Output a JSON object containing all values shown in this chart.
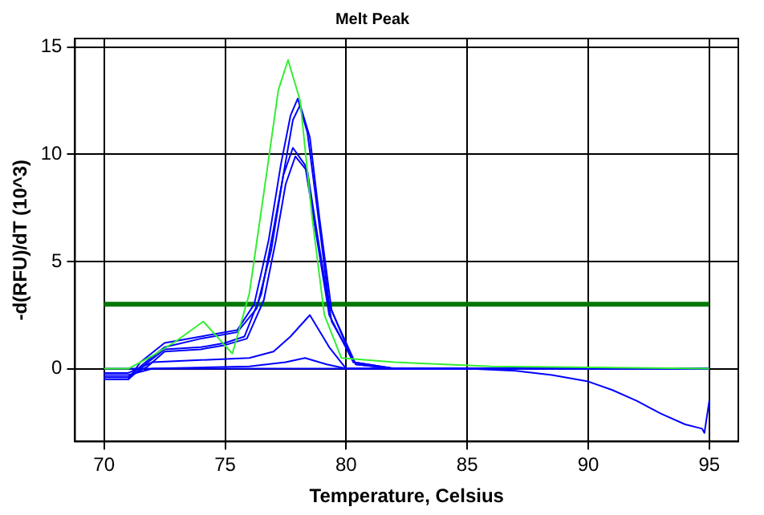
{
  "chart_data": {
    "type": "line",
    "title": "Melt Peak",
    "xlabel": "Temperature, Celsius",
    "ylabel": "-d(RFU)/dT (10^3)",
    "xlim": [
      68.8,
      96.2
    ],
    "ylim": [
      -3.4,
      15.4
    ],
    "xticks": [
      70,
      75,
      80,
      85,
      90,
      95
    ],
    "yticks": [
      0,
      5,
      10,
      15
    ],
    "grid": true,
    "legend": false,
    "marker": "none",
    "line_style": "solid",
    "ref_lines": [
      {
        "axis": "y",
        "value": 3,
        "color": "#007700"
      }
    ],
    "series": [
      {
        "color": "#33ee33",
        "x": [
          70,
          71,
          72,
          73,
          74.1,
          75.3,
          76,
          76.7,
          77.2,
          77.6,
          78.1,
          78.6,
          79.1,
          79.8,
          82,
          86,
          95
        ],
        "values": [
          0,
          0,
          0.6,
          1.3,
          2.2,
          0.7,
          3.5,
          9,
          13,
          14.4,
          12.5,
          7,
          2.5,
          0.5,
          0.3,
          0.1,
          0
        ]
      },
      {
        "color": "#0000ff",
        "x": [
          70,
          71,
          71.5,
          72.5,
          74,
          75.5,
          76.2,
          76.8,
          77.3,
          77.7,
          78,
          78.4,
          78.8,
          79.3,
          80.3,
          82,
          95
        ],
        "values": [
          -0.5,
          -0.5,
          0.3,
          1.2,
          1.5,
          1.8,
          3,
          6,
          9.5,
          11.8,
          12.6,
          11,
          7.5,
          3,
          0.3,
          0,
          0
        ]
      },
      {
        "color": "#0000ff",
        "x": [
          70,
          71,
          71.6,
          72.5,
          74,
          75.5,
          76.3,
          76.9,
          77.4,
          77.8,
          78.1,
          78.5,
          78.9,
          79.4,
          80.4,
          82,
          95
        ],
        "values": [
          -0.4,
          -0.4,
          0.2,
          1,
          1.4,
          1.7,
          2.8,
          5.5,
          9,
          11.6,
          12.3,
          10.8,
          7,
          2.7,
          0.2,
          0,
          0
        ]
      },
      {
        "color": "#0000ff",
        "x": [
          70,
          71,
          71.7,
          72.5,
          74,
          75,
          75.8,
          76.5,
          77,
          77.4,
          77.8,
          78.3,
          78.8,
          79.3,
          80.3,
          82,
          95
        ],
        "values": [
          -0.5,
          -0.5,
          0.2,
          0.9,
          1,
          1.2,
          1.5,
          3.5,
          6.5,
          9,
          10.3,
          9.5,
          6,
          2.5,
          0.3,
          0,
          0
        ]
      },
      {
        "color": "#0000ff",
        "x": [
          70,
          71,
          71.8,
          72.5,
          74,
          75,
          75.9,
          76.6,
          77.1,
          77.5,
          77.9,
          78.4,
          78.9,
          79.4,
          80.4,
          82,
          95
        ],
        "values": [
          -0.4,
          -0.4,
          0.1,
          0.8,
          0.9,
          1.1,
          1.4,
          3.2,
          6,
          8.6,
          9.9,
          9.2,
          5.6,
          2.2,
          0.2,
          0,
          0
        ]
      },
      {
        "color": "#0000ff",
        "x": [
          70,
          71,
          72,
          74,
          76,
          77,
          77.7,
          78.5,
          79.3,
          80,
          82,
          95
        ],
        "values": [
          -0.2,
          -0.2,
          0.3,
          0.4,
          0.5,
          0.8,
          1.5,
          2.5,
          1,
          0,
          0,
          0
        ]
      },
      {
        "color": "#0000ff",
        "x": [
          70,
          72,
          76,
          77.5,
          78.3,
          79.2,
          80,
          95
        ],
        "values": [
          0,
          0,
          0.1,
          0.3,
          0.5,
          0.2,
          0,
          0
        ]
      },
      {
        "color": "#0000ff",
        "x": [
          70,
          71,
          72,
          80,
          85,
          87,
          88.5,
          90,
          91,
          92,
          93,
          94,
          94.7,
          94.8,
          95
        ],
        "values": [
          -0.3,
          -0.3,
          0,
          0,
          0,
          -0.1,
          -0.3,
          -0.6,
          -1,
          -1.5,
          -2.1,
          -2.6,
          -2.8,
          -3,
          -1.5
        ]
      }
    ]
  }
}
